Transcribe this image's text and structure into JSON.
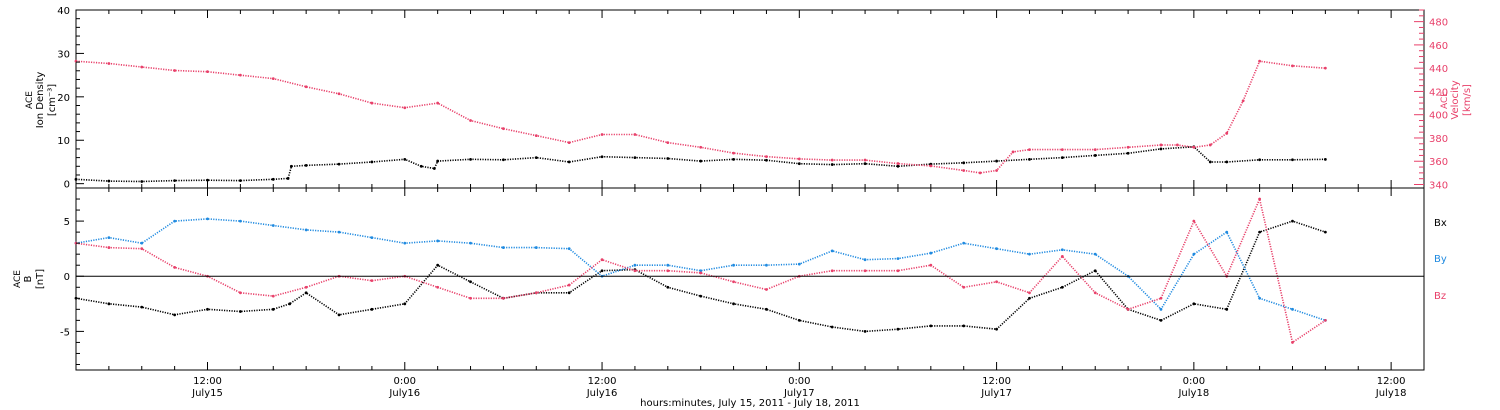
{
  "colors": {
    "black": "#000000",
    "pink": "#e8406a",
    "blue": "#1f8ae0"
  },
  "xaxis": {
    "label": "hours:minutes, July 15, 2011 - July 18, 2011",
    "ticks": [
      {
        "hour": 12,
        "time": "12:00",
        "day": "July15"
      },
      {
        "hour": 24,
        "time": "0:00",
        "day": "July16"
      },
      {
        "hour": 36,
        "time": "12:00",
        "day": "July16"
      },
      {
        "hour": 48,
        "time": "0:00",
        "day": "July17"
      },
      {
        "hour": 60,
        "time": "12:00",
        "day": "July17"
      },
      {
        "hour": 72,
        "time": "0:00",
        "day": "July18"
      },
      {
        "hour": 84,
        "time": "12:00",
        "day": "July18"
      }
    ]
  },
  "top_panel": {
    "ylabel_left": [
      "ACE",
      "Ion Density",
      "[cm⁻³]"
    ],
    "ylabel_right": [
      "ACE",
      "Velocity",
      "[km/s]"
    ],
    "left_ticks": [
      "0",
      "10",
      "20",
      "30",
      "40"
    ],
    "right_ticks": [
      "340",
      "360",
      "380",
      "400",
      "420",
      "440",
      "460",
      "480"
    ]
  },
  "bottom_panel": {
    "ylabel": [
      "ACE",
      "B",
      "[nT]"
    ],
    "ticks": [
      "-5",
      "0",
      "5"
    ],
    "legend": [
      "Bx",
      "By",
      "Bz"
    ]
  },
  "chart_data": [
    {
      "type": "scatter",
      "title": "",
      "xlabel": "hours:minutes, July 15, 2011 - July 18, 2011",
      "x_units": "hours since July 15 00:00",
      "xlim": [
        4,
        86
      ],
      "series": [
        {
          "name": "Ion Density",
          "axis": "left",
          "ylim": [
            -1,
            40
          ],
          "color": "black",
          "x": [
            4,
            6,
            8,
            10,
            12,
            14,
            16,
            16.9,
            17.1,
            18,
            20,
            22,
            24,
            25,
            25.8,
            26,
            28,
            30,
            32,
            34,
            36,
            38,
            40,
            42,
            44,
            46,
            48,
            50,
            52,
            54,
            56,
            58,
            60,
            62,
            64,
            66,
            68,
            70,
            72,
            73,
            74,
            76,
            78,
            80
          ],
          "y": [
            1,
            0.6,
            0.5,
            0.7,
            0.8,
            0.7,
            1,
            1.2,
            4,
            4.2,
            4.5,
            5,
            5.6,
            4,
            3.5,
            5.2,
            5.6,
            5.5,
            6,
            5,
            6.2,
            6,
            5.8,
            5.2,
            5.6,
            5.4,
            4.6,
            4.4,
            4.6,
            4,
            4.5,
            4.8,
            5.2,
            5.6,
            6,
            6.5,
            7,
            8,
            8.5,
            5,
            5,
            5.5,
            5.5,
            5.6
          ]
        },
        {
          "name": "Velocity",
          "axis": "right",
          "ylim": [
            337,
            490
          ],
          "color": "pink",
          "x": [
            4,
            6,
            8,
            10,
            12,
            14,
            16,
            18,
            20,
            22,
            24,
            26,
            28,
            30,
            32,
            34,
            36,
            38,
            40,
            42,
            44,
            46,
            48,
            50,
            52,
            54,
            56,
            58,
            59,
            60,
            61,
            62,
            64,
            66,
            68,
            70,
            71,
            72,
            73,
            74,
            75,
            76,
            78,
            80
          ],
          "y": [
            446,
            444,
            441,
            438,
            437,
            434,
            431,
            424,
            418,
            410,
            406,
            410,
            395,
            388,
            382,
            376,
            383,
            383,
            376,
            372,
            367,
            364,
            362,
            361,
            361,
            358,
            356,
            352,
            350,
            352,
            368,
            370,
            370,
            370,
            372,
            374,
            374,
            372,
            374,
            384,
            412,
            446,
            442,
            440
          ]
        }
      ]
    },
    {
      "type": "scatter",
      "title": "",
      "ylabel": "B [nT]",
      "ylim": [
        -8.5,
        8
      ],
      "x_units": "hours since July 15 00:00",
      "xlim": [
        4,
        86
      ],
      "series": [
        {
          "name": "Bx",
          "color": "black",
          "x": [
            4,
            6,
            8,
            10,
            12,
            14,
            16,
            17,
            18,
            20,
            22,
            24,
            26,
            28,
            30,
            32,
            34,
            36,
            38,
            40,
            42,
            44,
            46,
            48,
            50,
            52,
            54,
            56,
            58,
            60,
            62,
            64,
            66,
            68,
            70,
            72,
            74,
            76,
            78,
            80
          ],
          "y": [
            -2,
            -2.5,
            -2.8,
            -3.5,
            -3,
            -3.2,
            -3,
            -2.5,
            -1.5,
            -3.5,
            -3,
            -2.5,
            1,
            -0.5,
            -2,
            -1.5,
            -1.5,
            0.5,
            0.6,
            -1,
            -1.8,
            -2.5,
            -3,
            -4,
            -4.6,
            -5,
            -4.8,
            -4.5,
            -4.5,
            -4.8,
            -2,
            -1,
            0.5,
            -3,
            -4,
            -2.5,
            -3,
            4,
            5,
            4
          ]
        },
        {
          "name": "By",
          "color": "blue",
          "x": [
            4,
            6,
            8,
            10,
            12,
            14,
            16,
            18,
            20,
            22,
            24,
            26,
            28,
            30,
            32,
            34,
            36,
            38,
            40,
            42,
            44,
            46,
            48,
            50,
            52,
            54,
            56,
            58,
            60,
            62,
            64,
            66,
            68,
            70,
            72,
            74,
            76,
            78,
            80
          ],
          "y": [
            3,
            3.5,
            3,
            5,
            5.2,
            5,
            4.6,
            4.2,
            4,
            3.5,
            3,
            3.2,
            3,
            2.6,
            2.6,
            2.5,
            0,
            1,
            1,
            0.5,
            1,
            1,
            1.1,
            2.3,
            1.5,
            1.6,
            2.1,
            3,
            2.5,
            2,
            2.4,
            2,
            0,
            -3,
            2,
            4,
            -2,
            -3,
            -4
          ]
        },
        {
          "name": "Bz",
          "color": "pink",
          "x": [
            4,
            6,
            8,
            10,
            12,
            14,
            16,
            18,
            20,
            22,
            24,
            26,
            28,
            30,
            32,
            34,
            36,
            38,
            40,
            42,
            44,
            46,
            48,
            50,
            52,
            54,
            56,
            58,
            60,
            62,
            64,
            66,
            68,
            70,
            72,
            74,
            76,
            78,
            80
          ],
          "y": [
            3,
            2.6,
            2.5,
            0.8,
            0,
            -1.5,
            -1.8,
            -1,
            0,
            -0.4,
            0,
            -1,
            -2,
            -2,
            -1.5,
            -0.8,
            1.5,
            0.5,
            0.5,
            0.3,
            -0.5,
            -1.2,
            0,
            0.5,
            0.5,
            0.5,
            1,
            -1,
            -0.5,
            -1.5,
            1.8,
            -1.5,
            -3,
            -2,
            5,
            0,
            7,
            -6,
            -4
          ]
        }
      ]
    }
  ]
}
